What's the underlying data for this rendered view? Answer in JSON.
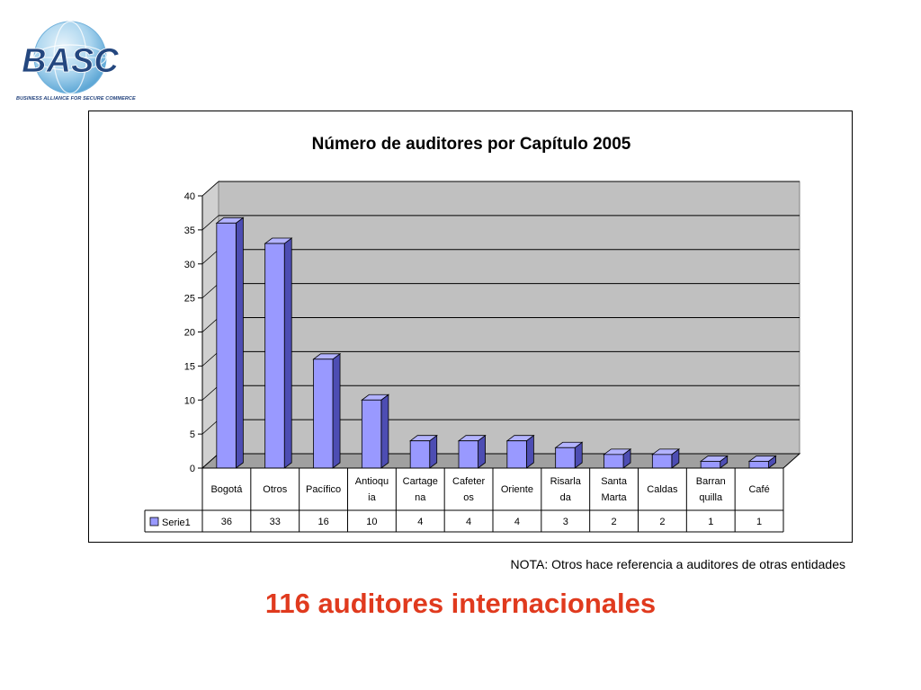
{
  "logo": {
    "text": "BASC",
    "tagline": "BUSINESS ALLIANCE FOR SECURE COMMERCE"
  },
  "chart_data": {
    "type": "bar",
    "title": "Número de auditores por Capítulo 2005",
    "categories": [
      [
        "Bogotá"
      ],
      [
        "Otros"
      ],
      [
        "Pacífico"
      ],
      [
        "Antioqu",
        "ia"
      ],
      [
        "Cartage",
        "na"
      ],
      [
        "Cafeter",
        "os"
      ],
      [
        "Oriente"
      ],
      [
        "Risarla",
        "da"
      ],
      [
        "Santa",
        "Marta"
      ],
      [
        "Caldas"
      ],
      [
        "Barran",
        "quilla"
      ],
      [
        "Café"
      ]
    ],
    "series": [
      {
        "name": "Serie1",
        "values": [
          36,
          33,
          16,
          10,
          4,
          4,
          4,
          3,
          2,
          2,
          1,
          1
        ]
      }
    ],
    "ylim": [
      0,
      40
    ],
    "yticks": [
      0,
      5,
      10,
      15,
      20,
      25,
      30,
      35,
      40
    ],
    "grid": true,
    "legend": "table",
    "colors": {
      "bar": "#9999ff",
      "bar_top": "#b3b3ff",
      "bar_side": "#4d4db3",
      "wall": "#c0c0c0"
    }
  },
  "note": "NOTA: Otros hace referencia a auditores de otras entidades",
  "headline": "116 auditores internacionales"
}
